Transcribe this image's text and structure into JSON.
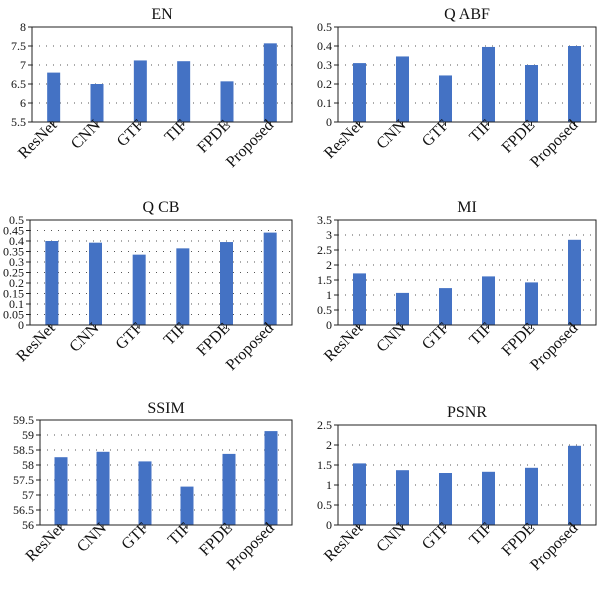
{
  "colors": {
    "bar": "#4472C4",
    "grid": "#555555",
    "axis": "#222222"
  },
  "chart_data": [
    {
      "type": "bar",
      "title": "EN",
      "categories": [
        "ResNet",
        "CNN",
        "GTF",
        "TIF",
        "FPDE",
        "Proposed"
      ],
      "values": [
        6.8,
        6.5,
        7.12,
        7.1,
        6.57,
        7.57
      ],
      "ylim": [
        5.5,
        8
      ],
      "yticks": [
        5.5,
        6,
        6.5,
        7,
        7.5,
        8
      ],
      "ytick_labels": [
        "5.5",
        "6",
        "6.5",
        "7",
        "7.5",
        "8"
      ],
      "grid": "horizontal dotted"
    },
    {
      "type": "bar",
      "title": "Q ABF",
      "categories": [
        "ResNet",
        "CNN",
        "GTF",
        "TIF",
        "FPDE",
        "Proposed"
      ],
      "values": [
        0.31,
        0.345,
        0.245,
        0.395,
        0.3,
        0.4
      ],
      "ylim": [
        0,
        0.5
      ],
      "yticks": [
        0,
        0.1,
        0.2,
        0.3,
        0.4,
        0.5
      ],
      "ytick_labels": [
        "0",
        "0.1",
        "0.2",
        "0.3",
        "0.4",
        "0.5"
      ],
      "grid": "horizontal dotted"
    },
    {
      "type": "bar",
      "title": "Q CB",
      "categories": [
        "ResNet",
        "CNN",
        "GTF",
        "TIF",
        "FPDE",
        "Proposed"
      ],
      "values": [
        0.4,
        0.392,
        0.335,
        0.365,
        0.395,
        0.44
      ],
      "ylim": [
        0,
        0.5
      ],
      "yticks": [
        0,
        0.05,
        0.1,
        0.15,
        0.2,
        0.25,
        0.3,
        0.35,
        0.4,
        0.45,
        0.5
      ],
      "ytick_labels": [
        "0",
        "0.05",
        "0.1",
        "0.15",
        "0.2",
        "0.25",
        "0.3",
        "0.35",
        "0.4",
        "0.45",
        "0.5"
      ],
      "grid": "horizontal dotted"
    },
    {
      "type": "bar",
      "title": "MI",
      "categories": [
        "ResNet",
        "CNN",
        "GTF",
        "TIF",
        "FPDE",
        "Proposed"
      ],
      "values": [
        1.72,
        1.07,
        1.23,
        1.62,
        1.42,
        2.84
      ],
      "ylim": [
        0,
        3.5
      ],
      "yticks": [
        0,
        0.5,
        1,
        1.5,
        2,
        2.5,
        3,
        3.5
      ],
      "ytick_labels": [
        "0",
        "0.5",
        "1",
        "1.5",
        "2",
        "2.5",
        "3",
        "3.5"
      ],
      "grid": "horizontal dotted"
    },
    {
      "type": "bar",
      "title": "SSIM",
      "categories": [
        "ResNet",
        "CNN",
        "GTF",
        "TIF",
        "FPDE",
        "Proposed"
      ],
      "values": [
        58.26,
        58.44,
        58.12,
        57.28,
        58.37,
        59.13
      ],
      "ylim": [
        56,
        59.5
      ],
      "yticks": [
        56,
        56.5,
        57,
        57.5,
        58,
        58.5,
        59,
        59.5
      ],
      "ytick_labels": [
        "56",
        "56.5",
        "57",
        "57.5",
        "58",
        "58.5",
        "59",
        "59.5"
      ],
      "grid": "horizontal dotted"
    },
    {
      "type": "bar",
      "title": "PSNR",
      "categories": [
        "ResNet",
        "CNN",
        "GTF",
        "TIF",
        "FPDE",
        "Proposed"
      ],
      "values": [
        1.54,
        1.37,
        1.3,
        1.33,
        1.43,
        1.98
      ],
      "ylim": [
        0,
        2.5
      ],
      "yticks": [
        0,
        0.5,
        1,
        1.5,
        2,
        2.5
      ],
      "ytick_labels": [
        "0",
        "0.5",
        "1",
        "1.5",
        "2",
        "2.5"
      ],
      "grid": "horizontal dotted"
    }
  ]
}
